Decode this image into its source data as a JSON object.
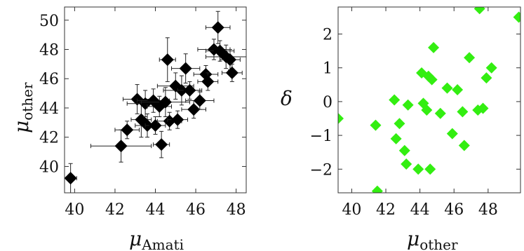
{
  "chart_data": [
    {
      "type": "scatter",
      "xlabel": "μ",
      "xlabel_sub": "Amati",
      "ylabel": "μ",
      "ylabel_sub": "other",
      "xlim": [
        39.5,
        48.5
      ],
      "ylim": [
        38.2,
        50.9
      ],
      "xticks": [
        40,
        42,
        44,
        46,
        48
      ],
      "yticks": [
        40,
        42,
        44,
        46,
        48,
        50
      ],
      "marker": "diamond",
      "marker_color": "#000000",
      "error_bars": true,
      "points": [
        {
          "x": 39.8,
          "y": 39.2,
          "xerr": 0.3,
          "yerr": 1.0
        },
        {
          "x": 42.3,
          "y": 41.4,
          "xerr": 1.5,
          "yerr": 1.1
        },
        {
          "x": 42.6,
          "y": 42.5,
          "xerr": 0.6,
          "yerr": 0.6
        },
        {
          "x": 43.1,
          "y": 44.6,
          "xerr": 0.7,
          "yerr": 1.0
        },
        {
          "x": 43.3,
          "y": 43.2,
          "xerr": 0.5,
          "yerr": 1.2
        },
        {
          "x": 43.5,
          "y": 44.3,
          "xerr": 0.9,
          "yerr": 0.9
        },
        {
          "x": 43.6,
          "y": 42.8,
          "xerr": 0.6,
          "yerr": 0.8
        },
        {
          "x": 43.9,
          "y": 44.5,
          "xerr": 0.8,
          "yerr": 0.8
        },
        {
          "x": 44.0,
          "y": 42.8,
          "xerr": 0.5,
          "yerr": 0.6
        },
        {
          "x": 44.2,
          "y": 44.1,
          "xerr": 0.6,
          "yerr": 0.7
        },
        {
          "x": 44.3,
          "y": 41.5,
          "xerr": 0.4,
          "yerr": 0.9
        },
        {
          "x": 44.5,
          "y": 44.4,
          "xerr": 1.2,
          "yerr": 1.0
        },
        {
          "x": 44.6,
          "y": 47.3,
          "xerr": 0.4,
          "yerr": 1.5
        },
        {
          "x": 44.7,
          "y": 43.1,
          "xerr": 0.6,
          "yerr": 0.6
        },
        {
          "x": 45.0,
          "y": 45.5,
          "xerr": 0.9,
          "yerr": 0.9
        },
        {
          "x": 45.1,
          "y": 43.2,
          "xerr": 0.5,
          "yerr": 0.6
        },
        {
          "x": 45.3,
          "y": 45.2,
          "xerr": 0.9,
          "yerr": 1.0
        },
        {
          "x": 45.5,
          "y": 46.7,
          "xerr": 0.7,
          "yerr": 1.0
        },
        {
          "x": 45.7,
          "y": 45.2,
          "xerr": 0.6,
          "yerr": 0.6
        },
        {
          "x": 45.9,
          "y": 43.9,
          "xerr": 0.6,
          "yerr": 0.6
        },
        {
          "x": 46.2,
          "y": 44.5,
          "xerr": 0.7,
          "yerr": 0.6
        },
        {
          "x": 46.5,
          "y": 46.3,
          "xerr": 0.6,
          "yerr": 0.6
        },
        {
          "x": 46.6,
          "y": 45.8,
          "xerr": 0.5,
          "yerr": 0.6
        },
        {
          "x": 46.9,
          "y": 48.0,
          "xerr": 0.8,
          "yerr": 0.7
        },
        {
          "x": 47.1,
          "y": 49.5,
          "xerr": 0.6,
          "yerr": 1.1
        },
        {
          "x": 47.2,
          "y": 47.9,
          "xerr": 0.7,
          "yerr": 0.7
        },
        {
          "x": 47.5,
          "y": 47.5,
          "xerr": 1.0,
          "yerr": 0.8
        },
        {
          "x": 47.7,
          "y": 47.3,
          "xerr": 0.5,
          "yerr": 0.7
        },
        {
          "x": 47.8,
          "y": 46.4,
          "xerr": 0.5,
          "yerr": 0.6
        }
      ]
    },
    {
      "type": "scatter",
      "xlabel": "μ",
      "xlabel_sub": "other",
      "ylabel": "δ",
      "xlim": [
        39.2,
        49.9
      ],
      "ylim": [
        -2.7,
        2.8
      ],
      "xticks": [
        40,
        42,
        44,
        46,
        48
      ],
      "yticks": [
        -2,
        -1,
        0,
        1,
        2
      ],
      "marker": "diamond",
      "marker_color": "#33ee11",
      "points": [
        {
          "x": 39.2,
          "y": -0.5
        },
        {
          "x": 41.4,
          "y": -0.7
        },
        {
          "x": 41.5,
          "y": -2.65
        },
        {
          "x": 42.5,
          "y": 0.05
        },
        {
          "x": 42.6,
          "y": -1.1
        },
        {
          "x": 42.8,
          "y": -0.65
        },
        {
          "x": 43.1,
          "y": -1.45
        },
        {
          "x": 43.2,
          "y": -1.85
        },
        {
          "x": 43.3,
          "y": -0.1
        },
        {
          "x": 43.9,
          "y": -2.0
        },
        {
          "x": 44.1,
          "y": 0.85
        },
        {
          "x": 44.2,
          "y": -0.05
        },
        {
          "x": 44.4,
          "y": -0.25
        },
        {
          "x": 44.5,
          "y": 0.75
        },
        {
          "x": 44.6,
          "y": -2.0
        },
        {
          "x": 44.7,
          "y": 0.65
        },
        {
          "x": 44.8,
          "y": 1.6
        },
        {
          "x": 45.2,
          "y": -0.35
        },
        {
          "x": 45.6,
          "y": 0.4
        },
        {
          "x": 45.9,
          "y": -0.95
        },
        {
          "x": 46.2,
          "y": 0.35
        },
        {
          "x": 46.5,
          "y": -0.3
        },
        {
          "x": 46.6,
          "y": -1.3
        },
        {
          "x": 46.9,
          "y": 1.3
        },
        {
          "x": 47.4,
          "y": -0.25
        },
        {
          "x": 47.5,
          "y": 2.75
        },
        {
          "x": 47.7,
          "y": -0.2
        },
        {
          "x": 47.9,
          "y": 0.7
        },
        {
          "x": 48.2,
          "y": 1.0
        },
        {
          "x": 49.8,
          "y": 2.5
        }
      ]
    }
  ]
}
